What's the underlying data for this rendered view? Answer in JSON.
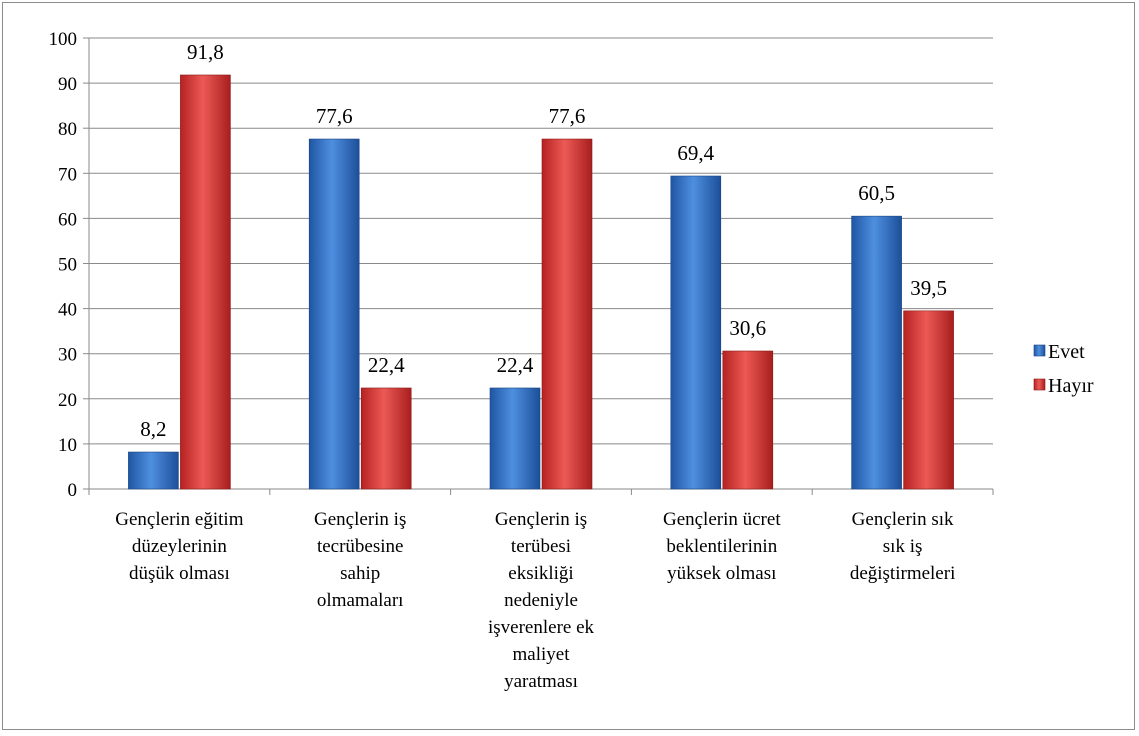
{
  "chart_data": {
    "type": "bar",
    "title": "",
    "xlabel": "",
    "ylabel": "",
    "ylim": [
      0,
      100
    ],
    "yticks": [
      "0",
      "10",
      "20",
      "30",
      "40",
      "50",
      "60",
      "70",
      "80",
      "90",
      "100"
    ],
    "grid": true,
    "legend_position": "right",
    "categories": [
      [
        "Gençlerin eğitim",
        "düzeylerinin",
        "düşük olması"
      ],
      [
        "Gençlerin iş",
        "tecrübesine",
        "sahip",
        "olmamaları"
      ],
      [
        "Gençlerin iş",
        "terübesi",
        "eksikliği",
        "nedeniyle",
        "işverenlere ek",
        "maliyet",
        "yaratması"
      ],
      [
        "Gençlerin ücret",
        "beklentilerinin",
        "yüksek olması"
      ],
      [
        "Gençlerin sık",
        "sık iş",
        "değiştirmeleri"
      ]
    ],
    "series": [
      {
        "name": "Evet",
        "color": "#2f6fc4",
        "values": [
          8.2,
          77.6,
          22.4,
          69.4,
          60.5
        ],
        "labels": [
          "8,2",
          "77,6",
          "22,4",
          "69,4",
          "60,5"
        ]
      },
      {
        "name": "Hayır",
        "color": "#d93a3a",
        "values": [
          91.8,
          22.4,
          77.6,
          30.6,
          39.5
        ],
        "labels": [
          "91,8",
          "22,4",
          "77,6",
          "30,6",
          "39,5"
        ]
      }
    ]
  }
}
